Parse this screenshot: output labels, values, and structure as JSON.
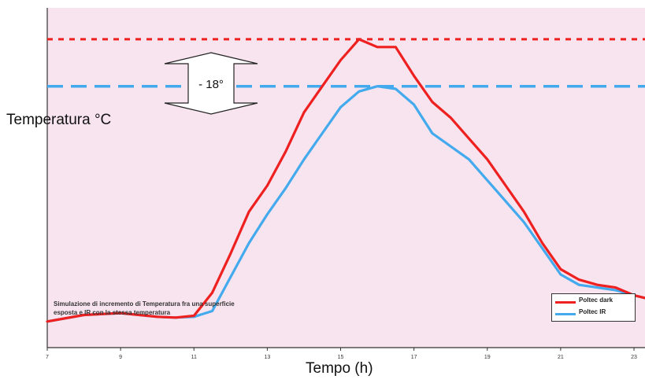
{
  "chart_data": {
    "type": "line",
    "xlabel": "Tempo (h)",
    "ylabel": "Temperatura °C",
    "x_ticks": [
      "7",
      "9",
      "11",
      "13",
      "15",
      "17",
      "19",
      "21",
      "23"
    ],
    "series": [
      {
        "name": "Poltec dark",
        "color": "#ee2020",
        "x": [
          7,
          8,
          9,
          10,
          10.5,
          11,
          11.5,
          12,
          12.5,
          13,
          13.5,
          14,
          14.5,
          15,
          15.5,
          16,
          16.5,
          17,
          17.5,
          18,
          18.5,
          19,
          19.5,
          20,
          20.5,
          21,
          21.5,
          22,
          22.5,
          23,
          23.3
        ],
        "values": [
          10,
          12.5,
          13.2,
          11.8,
          11.5,
          12.2,
          21,
          36,
          52,
          62,
          75,
          90,
          100,
          110,
          118,
          115,
          115,
          104,
          94,
          88,
          80,
          72,
          62,
          52,
          40,
          30,
          26,
          24,
          23,
          20,
          19
        ]
      },
      {
        "name": "Poltec IR",
        "color": "#44aaee",
        "x": [
          7,
          8,
          9,
          10,
          10.5,
          11,
          11.5,
          12,
          12.5,
          13,
          13.5,
          14,
          14.5,
          15,
          15.5,
          16,
          16.5,
          17,
          17.5,
          18,
          18.5,
          19,
          19.5,
          20,
          20.5,
          21,
          21.5,
          22,
          22.5,
          23,
          23.3
        ],
        "values": [
          10,
          12.5,
          13.2,
          11.8,
          11.5,
          11.8,
          14,
          27,
          40,
          51,
          61,
          72,
          82,
          92,
          98,
          100,
          99,
          93,
          82,
          77,
          72,
          64,
          56,
          48,
          38,
          28,
          24,
          23,
          22,
          20,
          19
        ]
      }
    ],
    "reference_lines": [
      {
        "style": "dotted",
        "color": "#ee2020",
        "value": 118
      },
      {
        "style": "dashed",
        "color": "#44aaee",
        "value": 100
      }
    ],
    "annotation": "- 18°",
    "note": "Simulazione di incremento di Temperatura fra una superficie esposta e IR con la stessa temperatura",
    "ylim": [
      0,
      130
    ],
    "xlim": [
      7,
      23.3
    ],
    "grid": false,
    "legend": "bottom-right"
  }
}
